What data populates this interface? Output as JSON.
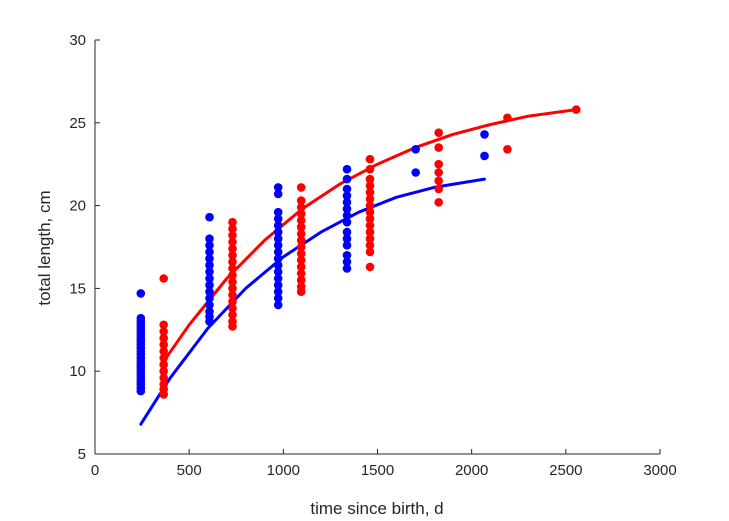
{
  "chart_data": {
    "type": "scatter",
    "title": "",
    "xlabel": "time since birth, d",
    "ylabel": "total length, cm",
    "xlim": [
      0,
      3000
    ],
    "ylim": [
      5,
      30
    ],
    "x_ticks": [
      0,
      500,
      1000,
      1500,
      2000,
      2500,
      3000
    ],
    "y_ticks": [
      5,
      10,
      15,
      20,
      25,
      30
    ],
    "grid": false,
    "legend": "none",
    "series": [
      {
        "kind": "points",
        "color": "#0000ff",
        "points": [
          [
            243,
            14.7
          ],
          [
            243,
            13.2
          ],
          [
            243,
            13.0
          ],
          [
            243,
            12.8
          ],
          [
            243,
            12.6
          ],
          [
            243,
            12.4
          ],
          [
            243,
            12.2
          ],
          [
            243,
            12.0
          ],
          [
            243,
            11.8
          ],
          [
            243,
            11.6
          ],
          [
            243,
            11.4
          ],
          [
            243,
            11.2
          ],
          [
            243,
            11.0
          ],
          [
            243,
            10.8
          ],
          [
            243,
            10.6
          ],
          [
            243,
            10.4
          ],
          [
            243,
            10.2
          ],
          [
            243,
            10.0
          ],
          [
            243,
            9.8
          ],
          [
            243,
            9.6
          ],
          [
            243,
            9.4
          ],
          [
            243,
            9.2
          ],
          [
            243,
            9.0
          ],
          [
            243,
            8.8
          ],
          [
            608,
            19.3
          ],
          [
            608,
            18.0
          ],
          [
            608,
            17.6
          ],
          [
            608,
            17.2
          ],
          [
            608,
            16.8
          ],
          [
            608,
            16.4
          ],
          [
            608,
            16.0
          ],
          [
            608,
            15.6
          ],
          [
            608,
            15.2
          ],
          [
            608,
            14.8
          ],
          [
            608,
            14.4
          ],
          [
            608,
            14.0
          ],
          [
            608,
            13.6
          ],
          [
            608,
            13.3
          ],
          [
            608,
            13.0
          ],
          [
            973,
            21.1
          ],
          [
            973,
            20.7
          ],
          [
            973,
            19.6
          ],
          [
            973,
            19.2
          ],
          [
            973,
            18.8
          ],
          [
            973,
            18.4
          ],
          [
            973,
            18.0
          ],
          [
            973,
            17.6
          ],
          [
            973,
            17.2
          ],
          [
            973,
            16.8
          ],
          [
            973,
            16.4
          ],
          [
            973,
            16.0
          ],
          [
            973,
            15.6
          ],
          [
            973,
            15.2
          ],
          [
            973,
            14.8
          ],
          [
            973,
            14.4
          ],
          [
            973,
            14.0
          ],
          [
            1338,
            22.2
          ],
          [
            1338,
            21.6
          ],
          [
            1338,
            21.0
          ],
          [
            1338,
            20.6
          ],
          [
            1338,
            20.2
          ],
          [
            1338,
            19.8
          ],
          [
            1338,
            19.4
          ],
          [
            1338,
            19.0
          ],
          [
            1338,
            18.4
          ],
          [
            1338,
            18.0
          ],
          [
            1338,
            17.6
          ],
          [
            1338,
            17.0
          ],
          [
            1338,
            16.6
          ],
          [
            1338,
            16.2
          ],
          [
            1703,
            23.4
          ],
          [
            1703,
            22.0
          ],
          [
            2068,
            24.3
          ],
          [
            2068,
            23.0
          ]
        ]
      },
      {
        "kind": "points",
        "color": "#ff0000",
        "points": [
          [
            365,
            15.6
          ],
          [
            365,
            12.8
          ],
          [
            365,
            12.4
          ],
          [
            365,
            12.0
          ],
          [
            365,
            11.6
          ],
          [
            365,
            11.2
          ],
          [
            365,
            10.8
          ],
          [
            365,
            10.4
          ],
          [
            365,
            10.0
          ],
          [
            365,
            9.6
          ],
          [
            365,
            9.2
          ],
          [
            365,
            8.9
          ],
          [
            365,
            8.6
          ],
          [
            730,
            19.0
          ],
          [
            730,
            18.6
          ],
          [
            730,
            18.2
          ],
          [
            730,
            17.8
          ],
          [
            730,
            17.4
          ],
          [
            730,
            17.0
          ],
          [
            730,
            16.6
          ],
          [
            730,
            16.2
          ],
          [
            730,
            15.8
          ],
          [
            730,
            15.4
          ],
          [
            730,
            15.0
          ],
          [
            730,
            14.6
          ],
          [
            730,
            14.2
          ],
          [
            730,
            13.8
          ],
          [
            730,
            13.4
          ],
          [
            730,
            13.0
          ],
          [
            730,
            12.7
          ],
          [
            1095,
            21.1
          ],
          [
            1095,
            20.3
          ],
          [
            1095,
            19.9
          ],
          [
            1095,
            19.5
          ],
          [
            1095,
            19.1
          ],
          [
            1095,
            18.7
          ],
          [
            1095,
            18.3
          ],
          [
            1095,
            17.9
          ],
          [
            1095,
            17.5
          ],
          [
            1095,
            17.1
          ],
          [
            1095,
            16.7
          ],
          [
            1095,
            16.3
          ],
          [
            1095,
            15.9
          ],
          [
            1095,
            15.5
          ],
          [
            1095,
            15.1
          ],
          [
            1095,
            14.8
          ],
          [
            1460,
            22.8
          ],
          [
            1460,
            22.2
          ],
          [
            1460,
            21.6
          ],
          [
            1460,
            21.2
          ],
          [
            1460,
            20.8
          ],
          [
            1460,
            20.4
          ],
          [
            1460,
            20.0
          ],
          [
            1460,
            19.6
          ],
          [
            1460,
            19.2
          ],
          [
            1460,
            18.8
          ],
          [
            1460,
            18.4
          ],
          [
            1460,
            18.0
          ],
          [
            1460,
            17.6
          ],
          [
            1460,
            17.2
          ],
          [
            1460,
            16.3
          ],
          [
            1825,
            24.4
          ],
          [
            1825,
            23.5
          ],
          [
            1825,
            22.5
          ],
          [
            1825,
            22.0
          ],
          [
            1825,
            21.5
          ],
          [
            1825,
            21.0
          ],
          [
            1825,
            20.2
          ],
          [
            2190,
            25.3
          ],
          [
            2190,
            23.4
          ],
          [
            2555,
            25.8
          ]
        ]
      },
      {
        "kind": "curve",
        "color": "#ff0000",
        "points": [
          [
            365,
            10.6
          ],
          [
            500,
            12.8
          ],
          [
            700,
            15.6
          ],
          [
            900,
            17.9
          ],
          [
            1100,
            19.8
          ],
          [
            1300,
            21.3
          ],
          [
            1500,
            22.5
          ],
          [
            1700,
            23.5
          ],
          [
            1900,
            24.3
          ],
          [
            2100,
            24.9
          ],
          [
            2300,
            25.4
          ],
          [
            2555,
            25.8
          ]
        ]
      },
      {
        "kind": "curve",
        "color": "#0000ff",
        "points": [
          [
            243,
            6.8
          ],
          [
            400,
            9.6
          ],
          [
            600,
            12.6
          ],
          [
            800,
            15.0
          ],
          [
            1000,
            16.9
          ],
          [
            1200,
            18.4
          ],
          [
            1400,
            19.6
          ],
          [
            1600,
            20.5
          ],
          [
            1800,
            21.1
          ],
          [
            2068,
            21.6
          ]
        ]
      }
    ]
  }
}
